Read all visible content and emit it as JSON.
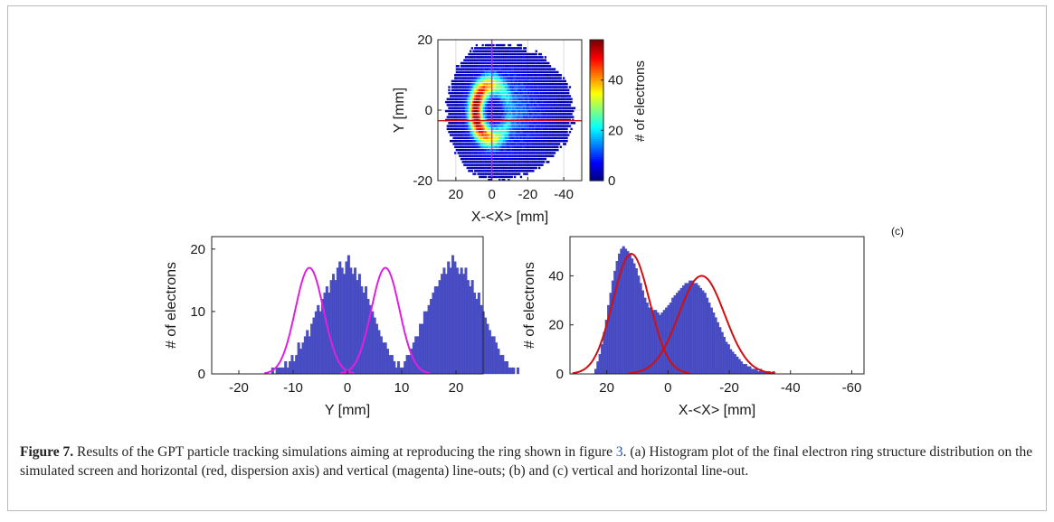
{
  "caption": {
    "label": "Figure 7.",
    "text_before_ref": "Results of the GPT particle tracking simulations aiming at reproducing the ring shown in figure ",
    "ref": "3",
    "text_after_ref": ". (a) Histogram plot of the final electron ring structure distribution on the simulated screen and horizontal (red, dispersion axis) and vertical (magenta) line-outs; (b) and (c) vertical and horizontal line-out."
  },
  "panel_label_c": "(c)",
  "chart_data": [
    {
      "type": "heatmap",
      "xlabel": "X-<X> [mm]",
      "ylabel": "Y [mm]",
      "xlim": [
        30,
        -50
      ],
      "x_reversed": true,
      "ylim": [
        -20,
        20
      ],
      "xticks": [
        20,
        0,
        -20,
        -40
      ],
      "xtick_labels": [
        "20",
        "0",
        "-20",
        "-40"
      ],
      "yticks": [
        -20,
        0,
        20
      ],
      "ytick_labels": [
        "-20",
        "0",
        "20"
      ],
      "grid": true,
      "colormap": "jet",
      "colorbar": {
        "label": "# of electrons",
        "range": [
          0,
          56
        ],
        "ticks": [
          0,
          20,
          40
        ],
        "tick_labels": [
          "0",
          "20",
          "40"
        ]
      },
      "ring": {
        "center": [
          0,
          0
        ],
        "radius_x": 9.5,
        "radius_y": 7.5,
        "peak_counts": 56,
        "hole_counts": 3
      },
      "lineouts": {
        "vertical": {
          "x": 0,
          "color": "#e020e0"
        },
        "horizontal": {
          "y": -3,
          "color": "#d01010"
        }
      }
    },
    {
      "type": "bar",
      "xlabel": "Y [mm]",
      "ylabel": "# of electrons",
      "xlim": [
        -25,
        25
      ],
      "ylim": [
        0,
        22
      ],
      "xticks": [
        -20,
        -10,
        0,
        10,
        20
      ],
      "xtick_labels": [
        "-20",
        "-10",
        "0",
        "10",
        "20"
      ],
      "yticks": [
        0,
        10,
        20
      ],
      "ytick_labels": [
        "0",
        "10",
        "20"
      ],
      "bar_color": "#4b4fc7",
      "histogram": {
        "bin_start": -16,
        "bin_width": 0.4,
        "counts": [
          0,
          0,
          0,
          0,
          0,
          1,
          0,
          1,
          1,
          1,
          1,
          2,
          1,
          2,
          3,
          2,
          3,
          5,
          4,
          5,
          6,
          7,
          6,
          8,
          9,
          10,
          11,
          10,
          12,
          13,
          14,
          13,
          15,
          16,
          15,
          17,
          18,
          17,
          16,
          18,
          19,
          17,
          16,
          17,
          15,
          16,
          14,
          13,
          14,
          12,
          11,
          10,
          9,
          8,
          7,
          6,
          5,
          5,
          4,
          3,
          3,
          2,
          1,
          2,
          1,
          1,
          2,
          3,
          3,
          4,
          5,
          6,
          6,
          8,
          8,
          10,
          10,
          11,
          12,
          13,
          14,
          14,
          15,
          16,
          17,
          16,
          18,
          17,
          19,
          18,
          17,
          16,
          17,
          16,
          17,
          15,
          14,
          15,
          13,
          12,
          13,
          11,
          10,
          9,
          8,
          7,
          6,
          6,
          5,
          4,
          3,
          3,
          2,
          2,
          1,
          1,
          1,
          0,
          1,
          0,
          0
        ]
      },
      "fits": [
        {
          "amplitude": 17,
          "mean": -7,
          "sigma": 2.6,
          "color": "#e020e0"
        },
        {
          "amplitude": 17,
          "mean": 7,
          "sigma": 2.6,
          "color": "#e020e0"
        }
      ]
    },
    {
      "type": "bar",
      "xlabel": "X-<X> [mm]",
      "ylabel": "# of electrons",
      "xlim": [
        32,
        -64
      ],
      "x_reversed": true,
      "ylim": [
        0,
        56
      ],
      "xticks": [
        20,
        0,
        -20,
        -40,
        -60
      ],
      "xtick_labels": [
        "20",
        "0",
        "-20",
        "-40",
        "-60"
      ],
      "yticks": [
        0,
        20,
        40
      ],
      "ytick_labels": [
        "0",
        "20",
        "40"
      ],
      "bar_color": "#4b4fc7",
      "histogram": {
        "bin_start": 24,
        "bin_width": -0.7,
        "counts": [
          2,
          5,
          8,
          12,
          17,
          22,
          28,
          33,
          38,
          42,
          46,
          49,
          51,
          52,
          51,
          50,
          49,
          47,
          45,
          43,
          40,
          37,
          34,
          31,
          29,
          27,
          27,
          26,
          26,
          25,
          24,
          25,
          26,
          27,
          28,
          29,
          31,
          32,
          33,
          34,
          35,
          36,
          37,
          37,
          38,
          38,
          37,
          37,
          36,
          35,
          34,
          33,
          31,
          29,
          27,
          25,
          23,
          21,
          19,
          17,
          15,
          13,
          12,
          10,
          9,
          8,
          7,
          6,
          5,
          4,
          4,
          3,
          3,
          2,
          2,
          2,
          1,
          2,
          1,
          1,
          1,
          1,
          0,
          1,
          0,
          0,
          0
        ]
      },
      "fits": [
        {
          "amplitude": 49,
          "mean": 12,
          "sigma": 6,
          "color": "#d01010"
        },
        {
          "amplitude": 40,
          "mean": -11,
          "sigma": 7.5,
          "color": "#d01010"
        }
      ]
    }
  ]
}
